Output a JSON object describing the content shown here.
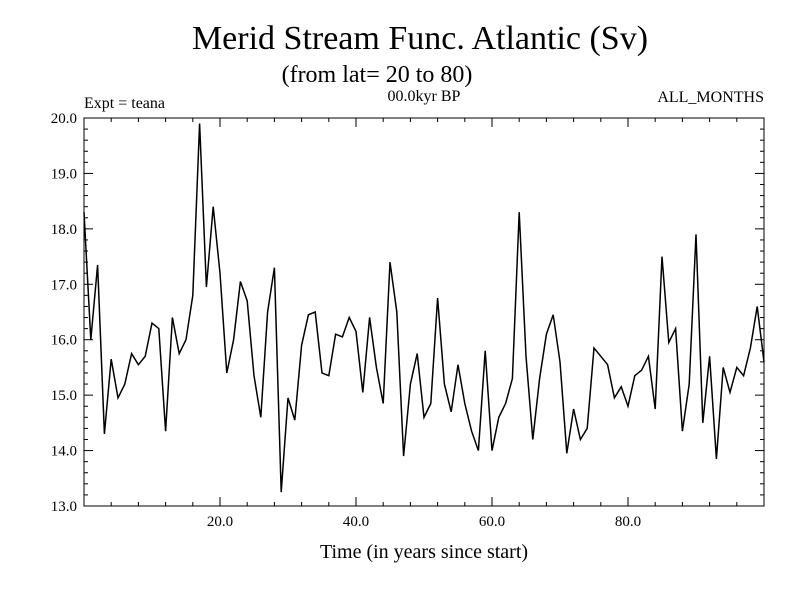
{
  "chart_data": {
    "type": "line",
    "title": "Merid Stream Func. Atlantic (Sv)",
    "subtitle": "(from lat= 20 to 80)",
    "annotations": {
      "left": "Expt = teana",
      "center": "00.0kyr BP",
      "right": "ALL_MONTHS"
    },
    "xlabel": "Time (in years since start)",
    "ylabel": "",
    "xlim": [
      0,
      100
    ],
    "ylim": [
      13.0,
      20.0
    ],
    "xticks": [
      20,
      40,
      60,
      80
    ],
    "xtick_labels": [
      "20.0",
      "40.0",
      "60.0",
      "80.0"
    ],
    "yticks": [
      13,
      14,
      15,
      16,
      17,
      18,
      19,
      20
    ],
    "ytick_labels": [
      "13.0",
      "14.0",
      "15.0",
      "16.0",
      "17.0",
      "18.0",
      "19.0",
      "20.0"
    ],
    "grid": false,
    "series": [
      {
        "name": "Merid Stream Func. Atlantic",
        "x": [
          0,
          1,
          2,
          3,
          4,
          5,
          6,
          7,
          8,
          9,
          10,
          11,
          12,
          13,
          14,
          15,
          16,
          17,
          18,
          19,
          20,
          21,
          22,
          23,
          24,
          25,
          26,
          27,
          28,
          29,
          30,
          31,
          32,
          33,
          34,
          35,
          36,
          37,
          38,
          39,
          40,
          41,
          42,
          43,
          44,
          45,
          46,
          47,
          48,
          49,
          50,
          51,
          52,
          53,
          54,
          55,
          56,
          57,
          58,
          59,
          60,
          61,
          62,
          63,
          64,
          65,
          66,
          67,
          68,
          69,
          70,
          71,
          72,
          73,
          74,
          75,
          76,
          77,
          78,
          79,
          80,
          81,
          82,
          83,
          84,
          85,
          86,
          87,
          88,
          89,
          90,
          91,
          92,
          93,
          94,
          95,
          96,
          97,
          98,
          99,
          100
        ],
        "y": [
          18.3,
          16.0,
          17.35,
          14.3,
          15.65,
          14.95,
          15.2,
          15.75,
          15.55,
          15.7,
          16.3,
          16.2,
          14.35,
          16.4,
          15.75,
          16.0,
          16.8,
          19.9,
          16.95,
          18.4,
          17.2,
          15.4,
          16.0,
          17.05,
          16.7,
          15.35,
          14.6,
          16.5,
          17.3,
          13.25,
          14.95,
          14.55,
          15.9,
          16.45,
          16.5,
          15.4,
          15.35,
          16.1,
          16.05,
          16.4,
          16.15,
          15.05,
          16.4,
          15.5,
          14.85,
          17.4,
          16.5,
          13.9,
          15.2,
          15.75,
          14.6,
          14.85,
          16.75,
          15.2,
          14.7,
          15.55,
          14.85,
          14.35,
          14.0,
          15.8,
          14.0,
          14.6,
          14.85,
          15.3,
          18.3,
          15.7,
          14.2,
          15.3,
          16.1,
          16.45,
          15.6,
          13.95,
          14.75,
          14.2,
          14.4,
          15.85,
          15.7,
          15.55,
          14.95,
          15.15,
          14.8,
          15.35,
          15.45,
          15.7,
          14.75,
          17.5,
          15.95,
          16.2,
          14.35,
          15.2,
          17.9,
          14.5,
          15.7,
          13.85,
          15.5,
          15.05,
          15.5,
          15.35,
          15.85,
          16.6,
          15.6
        ]
      }
    ]
  }
}
